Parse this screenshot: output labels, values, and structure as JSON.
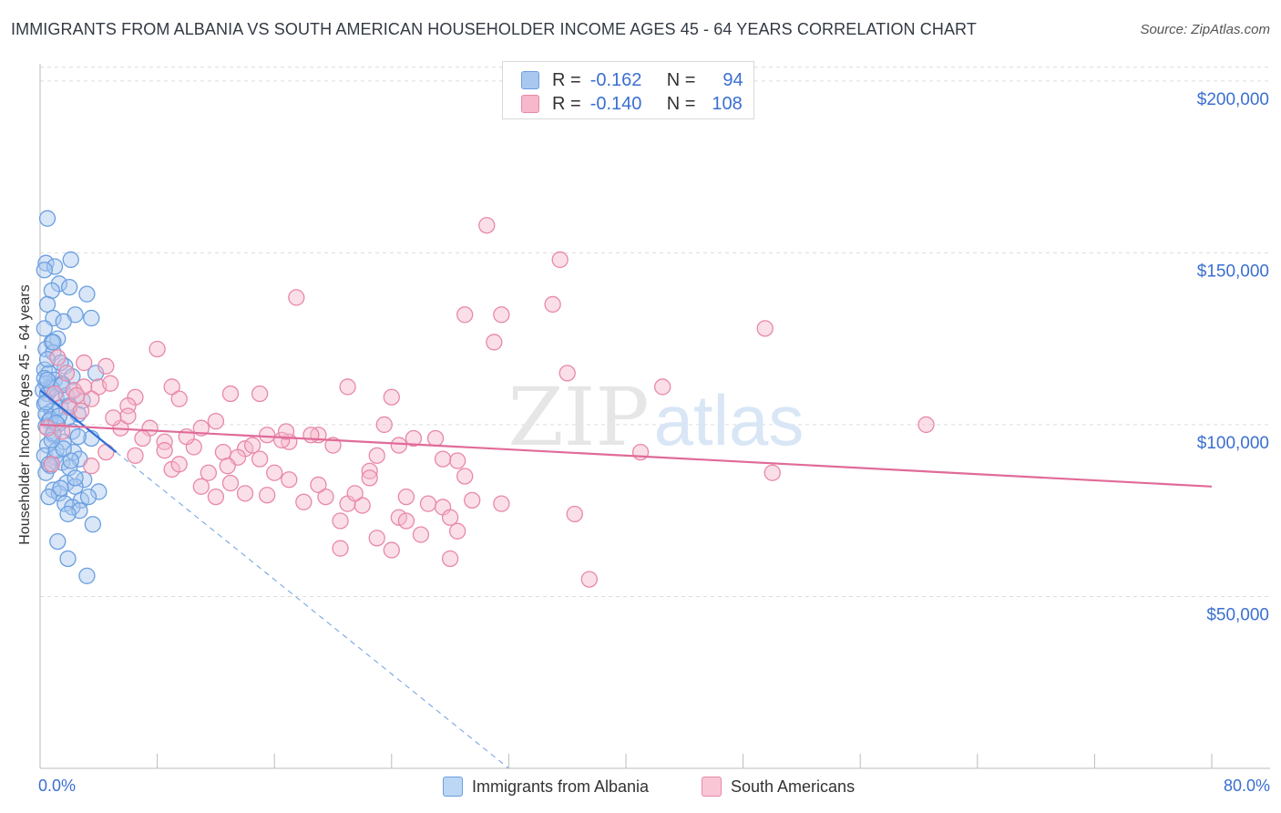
{
  "title": "IMMIGRANTS FROM ALBANIA VS SOUTH AMERICAN HOUSEHOLDER INCOME AGES 45 - 64 YEARS CORRELATION CHART",
  "source": "Source: ZipAtlas.com",
  "watermark": {
    "zip": "ZIP",
    "atlas": "atlas"
  },
  "legend_top": {
    "rows": [
      {
        "r_label": "R =",
        "r_value": "-0.162",
        "n_label": "N =",
        "n_value": "94",
        "color": "#a8c8f0",
        "border": "#6a9fe0"
      },
      {
        "r_label": "R =",
        "r_value": "-0.140",
        "n_label": "N =",
        "n_value": "108",
        "color": "#f7b8cc",
        "border": "#e888a8"
      }
    ]
  },
  "legend_bottom": [
    {
      "label": "Immigrants from Albania",
      "color": "#bcd6f5",
      "border": "#6a9fe0"
    },
    {
      "label": "South Americans",
      "color": "#f9c6d6",
      "border": "#e888a8"
    }
  ],
  "axes": {
    "x_min_label": "0.0%",
    "x_max_label": "80.0%",
    "y_ticks": [
      "$50,000",
      "$100,000",
      "$150,000",
      "$200,000"
    ]
  },
  "chart_data": {
    "type": "scatter",
    "title": "IMMIGRANTS FROM ALBANIA VS SOUTH AMERICAN HOUSEHOLDER INCOME AGES 45 - 64 YEARS CORRELATION CHART",
    "xlabel": "",
    "ylabel": "Householder Income Ages 45 - 64 years",
    "xlim": [
      0,
      80
    ],
    "ylim": [
      0,
      205000
    ],
    "y_ticks": [
      50000,
      100000,
      150000,
      200000
    ],
    "grid": true,
    "legend_placement": "top-center",
    "series": [
      {
        "name": "Immigrants from Albania",
        "color": "#6a9fe0",
        "fill": "#a8c8f0",
        "r": -0.162,
        "n": 94,
        "trend": {
          "x": [
            0,
            5.2
          ],
          "y": [
            110000,
            92000
          ],
          "dashed_to_x": 32,
          "dashed_to_y": 0
        },
        "points": [
          [
            0.5,
            160000
          ],
          [
            0.4,
            147000
          ],
          [
            2.1,
            148000
          ],
          [
            1.0,
            146000
          ],
          [
            0.3,
            145000
          ],
          [
            1.3,
            141000
          ],
          [
            2.0,
            140000
          ],
          [
            0.8,
            139000
          ],
          [
            3.2,
            138000
          ],
          [
            0.5,
            135000
          ],
          [
            2.4,
            132000
          ],
          [
            3.5,
            131000
          ],
          [
            0.9,
            131000
          ],
          [
            1.6,
            130000
          ],
          [
            0.3,
            128000
          ],
          [
            1.2,
            125000
          ],
          [
            0.8,
            124000
          ],
          [
            0.4,
            122000
          ],
          [
            0.9,
            121000
          ],
          [
            1.7,
            117000
          ],
          [
            0.3,
            116000
          ],
          [
            3.8,
            115000
          ],
          [
            0.6,
            115000
          ],
          [
            2.2,
            114000
          ],
          [
            1.0,
            113000
          ],
          [
            0.4,
            112000
          ],
          [
            1.5,
            112000
          ],
          [
            0.7,
            111000
          ],
          [
            0.2,
            110000
          ],
          [
            0.5,
            109000
          ],
          [
            1.1,
            108000
          ],
          [
            2.9,
            107000
          ],
          [
            0.3,
            106000
          ],
          [
            1.4,
            105000
          ],
          [
            0.8,
            104000
          ],
          [
            0.4,
            103000
          ],
          [
            2.6,
            103000
          ],
          [
            1.9,
            102000
          ],
          [
            0.6,
            101000
          ],
          [
            1.2,
            100000
          ],
          [
            0.4,
            99500
          ],
          [
            2.2,
            98000
          ],
          [
            0.9,
            97000
          ],
          [
            3.5,
            96000
          ],
          [
            1.6,
            95000
          ],
          [
            0.5,
            94000
          ],
          [
            2.3,
            92000
          ],
          [
            0.3,
            91000
          ],
          [
            1.0,
            90500
          ],
          [
            2.7,
            90000
          ],
          [
            1.5,
            89000
          ],
          [
            0.7,
            88000
          ],
          [
            2.0,
            87500
          ],
          [
            0.4,
            86000
          ],
          [
            3.0,
            84000
          ],
          [
            1.8,
            83000
          ],
          [
            2.4,
            82000
          ],
          [
            0.9,
            81000
          ],
          [
            4.0,
            80500
          ],
          [
            1.3,
            80000
          ],
          [
            0.6,
            79000
          ],
          [
            2.8,
            78000
          ],
          [
            1.7,
            77000
          ],
          [
            2.2,
            76000
          ],
          [
            3.6,
            71000
          ],
          [
            1.2,
            66000
          ],
          [
            1.9,
            61000
          ],
          [
            3.2,
            56000
          ],
          [
            0.8,
            110500
          ],
          [
            1.4,
            118000
          ],
          [
            0.5,
            119000
          ],
          [
            2.6,
            96500
          ],
          [
            1.1,
            92500
          ],
          [
            0.3,
            113500
          ],
          [
            1.8,
            108500
          ],
          [
            0.7,
            101500
          ],
          [
            2.1,
            89500
          ],
          [
            1.5,
            111500
          ],
          [
            0.9,
            97500
          ],
          [
            2.4,
            84500
          ],
          [
            0.4,
            106500
          ],
          [
            1.6,
            93000
          ],
          [
            0.6,
            88500
          ],
          [
            3.3,
            79000
          ],
          [
            1.3,
            102500
          ],
          [
            2.0,
            105500
          ],
          [
            0.8,
            95500
          ],
          [
            1.4,
            81500
          ],
          [
            2.7,
            75000
          ],
          [
            0.5,
            113000
          ],
          [
            1.1,
            100500
          ],
          [
            1.9,
            74000
          ],
          [
            0.9,
            124000
          ],
          [
            2.3,
            110000
          ]
        ]
      },
      {
        "name": "South Americans",
        "color": "#e888a8",
        "fill": "#f7b8cc",
        "r": -0.14,
        "n": 108,
        "trend": {
          "x": [
            0,
            80
          ],
          "y": [
            100000,
            82000
          ]
        },
        "points": [
          [
            30.5,
            158000
          ],
          [
            35.5,
            148000
          ],
          [
            17.5,
            137000
          ],
          [
            29.0,
            132000
          ],
          [
            31.5,
            132000
          ],
          [
            35.0,
            135000
          ],
          [
            49.5,
            128000
          ],
          [
            31.0,
            124000
          ],
          [
            8.0,
            122000
          ],
          [
            36.0,
            115000
          ],
          [
            3.0,
            118000
          ],
          [
            4.5,
            117000
          ],
          [
            42.5,
            111000
          ],
          [
            21.0,
            111000
          ],
          [
            9.0,
            111000
          ],
          [
            13.0,
            109000
          ],
          [
            24.0,
            108000
          ],
          [
            6.5,
            108000
          ],
          [
            15.0,
            109000
          ],
          [
            2.3,
            110000
          ],
          [
            2.0,
            105000
          ],
          [
            4.0,
            111000
          ],
          [
            6.0,
            105500
          ],
          [
            9.5,
            107500
          ],
          [
            60.5,
            100000
          ],
          [
            23.5,
            100000
          ],
          [
            11.0,
            99000
          ],
          [
            19.0,
            97000
          ],
          [
            15.5,
            97000
          ],
          [
            12.0,
            101000
          ],
          [
            25.5,
            96000
          ],
          [
            7.5,
            99000
          ],
          [
            1.5,
            98000
          ],
          [
            27.0,
            96000
          ],
          [
            4.5,
            92000
          ],
          [
            8.5,
            95000
          ],
          [
            14.0,
            93000
          ],
          [
            17.0,
            95000
          ],
          [
            20.0,
            94000
          ],
          [
            23.0,
            91000
          ],
          [
            28.5,
            89500
          ],
          [
            41.0,
            92000
          ],
          [
            10.5,
            93500
          ],
          [
            12.5,
            92000
          ],
          [
            18.5,
            97000
          ],
          [
            24.5,
            94000
          ],
          [
            6.5,
            91000
          ],
          [
            3.5,
            88000
          ],
          [
            9.0,
            87000
          ],
          [
            11.5,
            86000
          ],
          [
            16.0,
            86000
          ],
          [
            22.5,
            86500
          ],
          [
            27.5,
            90000
          ],
          [
            29.0,
            85000
          ],
          [
            50.0,
            86000
          ],
          [
            13.0,
            83000
          ],
          [
            17.0,
            84000
          ],
          [
            14.0,
            80000
          ],
          [
            19.5,
            79000
          ],
          [
            21.0,
            77000
          ],
          [
            22.0,
            76500
          ],
          [
            25.0,
            79000
          ],
          [
            26.5,
            77000
          ],
          [
            27.5,
            76000
          ],
          [
            29.5,
            78000
          ],
          [
            31.5,
            77000
          ],
          [
            36.5,
            74000
          ],
          [
            28.0,
            73000
          ],
          [
            24.5,
            73000
          ],
          [
            20.5,
            72000
          ],
          [
            18.0,
            77500
          ],
          [
            15.5,
            79500
          ],
          [
            11.0,
            82000
          ],
          [
            8.5,
            92500
          ],
          [
            5.5,
            99000
          ],
          [
            23.0,
            67000
          ],
          [
            26.0,
            68000
          ],
          [
            28.5,
            69000
          ],
          [
            20.5,
            64000
          ],
          [
            24.0,
            63500
          ],
          [
            28.0,
            61000
          ],
          [
            37.5,
            55000
          ],
          [
            12.0,
            79000
          ],
          [
            15.0,
            90000
          ],
          [
            21.5,
            80000
          ],
          [
            7.0,
            96000
          ],
          [
            10.0,
            96500
          ],
          [
            16.5,
            95500
          ],
          [
            13.5,
            90500
          ],
          [
            19.0,
            82500
          ],
          [
            25.0,
            72000
          ],
          [
            22.5,
            84500
          ],
          [
            9.5,
            88500
          ],
          [
            6.0,
            102500
          ],
          [
            3.5,
            107500
          ],
          [
            1.0,
            109000
          ],
          [
            2.8,
            104000
          ],
          [
            4.8,
            112000
          ],
          [
            16.8,
            98000
          ],
          [
            12.8,
            88000
          ],
          [
            1.8,
            115000
          ],
          [
            5.0,
            102000
          ],
          [
            0.8,
            88500
          ],
          [
            3.0,
            111000
          ],
          [
            14.5,
            94000
          ],
          [
            2.5,
            108500
          ],
          [
            0.5,
            99000
          ],
          [
            1.2,
            119500
          ]
        ]
      }
    ]
  }
}
